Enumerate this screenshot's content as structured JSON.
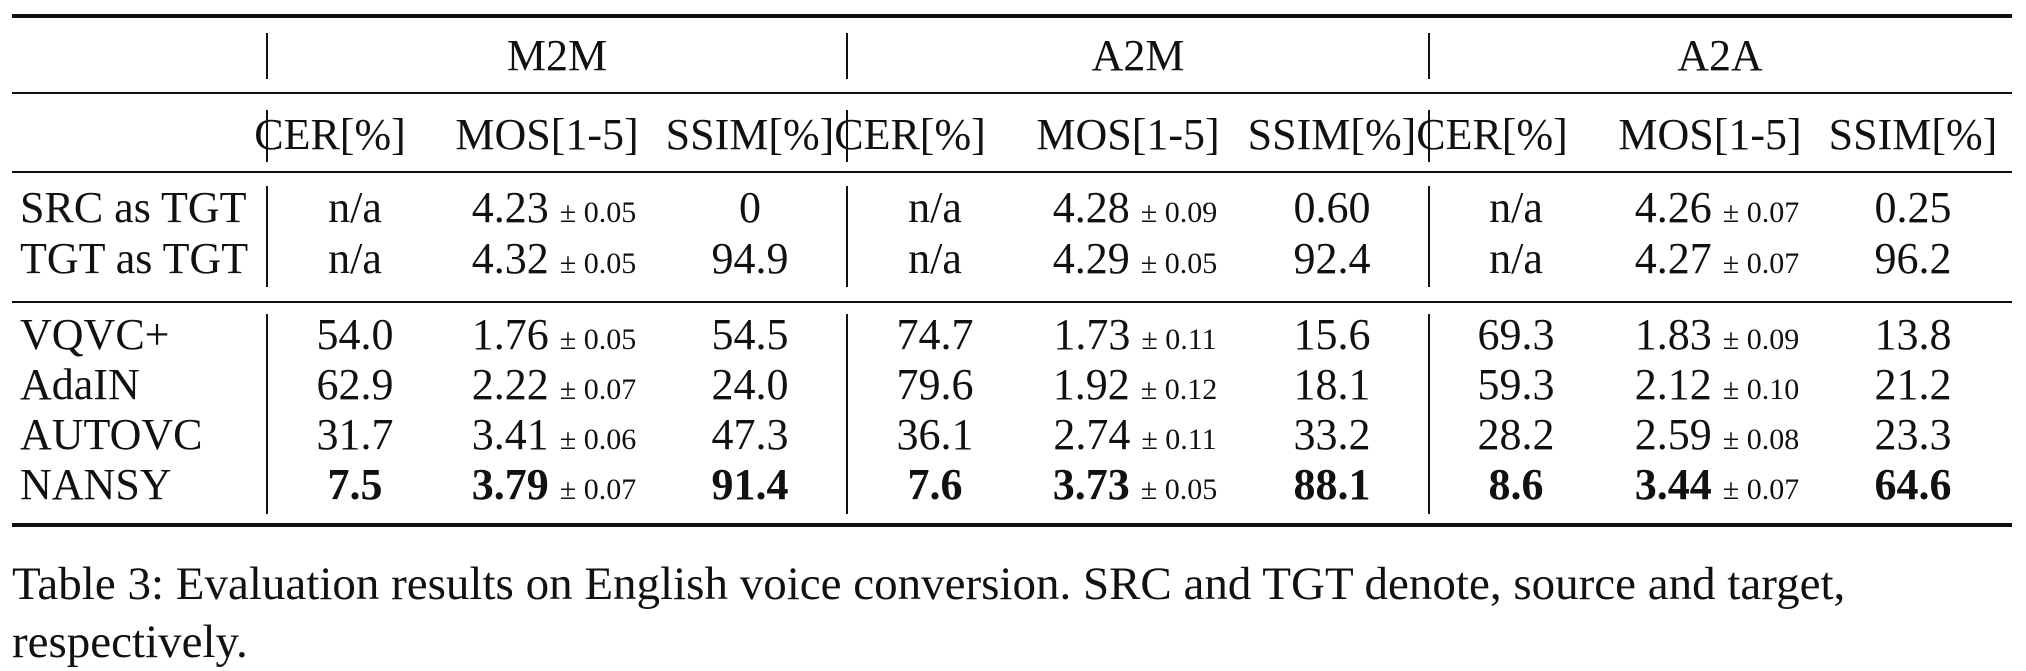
{
  "table": {
    "groups": [
      "M2M",
      "A2M",
      "A2A"
    ],
    "metrics": [
      "CER[%]",
      "MOS[1-5]",
      "SSIM[%]"
    ],
    "upper_rows": [
      {
        "label": "SRC as TGT",
        "cells": [
          {
            "cer": "n/a",
            "mos": "4.23",
            "mos_pm": "± 0.05",
            "ssim": "0"
          },
          {
            "cer": "n/a",
            "mos": "4.28",
            "mos_pm": "± 0.09",
            "ssim": "0.60"
          },
          {
            "cer": "n/a",
            "mos": "4.26",
            "mos_pm": "± 0.07",
            "ssim": "0.25"
          }
        ]
      },
      {
        "label": "TGT as TGT",
        "cells": [
          {
            "cer": "n/a",
            "mos": "4.32",
            "mos_pm": "± 0.05",
            "ssim": "94.9"
          },
          {
            "cer": "n/a",
            "mos": "4.29",
            "mos_pm": "± 0.05",
            "ssim": "92.4"
          },
          {
            "cer": "n/a",
            "mos": "4.27",
            "mos_pm": "± 0.07",
            "ssim": "96.2"
          }
        ]
      }
    ],
    "lower_rows": [
      {
        "label": "VQVC+",
        "bold": false,
        "cells": [
          {
            "cer": "54.0",
            "mos": "1.76",
            "mos_pm": "± 0.05",
            "ssim": "54.5"
          },
          {
            "cer": "74.7",
            "mos": "1.73",
            "mos_pm": "± 0.11",
            "ssim": "15.6"
          },
          {
            "cer": "69.3",
            "mos": "1.83",
            "mos_pm": "± 0.09",
            "ssim": "13.8"
          }
        ]
      },
      {
        "label": "AdaIN",
        "bold": false,
        "cells": [
          {
            "cer": "62.9",
            "mos": "2.22",
            "mos_pm": "± 0.07",
            "ssim": "24.0"
          },
          {
            "cer": "79.6",
            "mos": "1.92",
            "mos_pm": "± 0.12",
            "ssim": "18.1"
          },
          {
            "cer": "59.3",
            "mos": "2.12",
            "mos_pm": "± 0.10",
            "ssim": "21.2"
          }
        ]
      },
      {
        "label": "AUTOVC",
        "bold": false,
        "cells": [
          {
            "cer": "31.7",
            "mos": "3.41",
            "mos_pm": "± 0.06",
            "ssim": "47.3"
          },
          {
            "cer": "36.1",
            "mos": "2.74",
            "mos_pm": "± 0.11",
            "ssim": "33.2"
          },
          {
            "cer": "28.2",
            "mos": "2.59",
            "mos_pm": "± 0.08",
            "ssim": "23.3"
          }
        ]
      },
      {
        "label": "NANSY",
        "bold": true,
        "cells": [
          {
            "cer": "7.5",
            "mos": "3.79",
            "mos_pm": "± 0.07",
            "ssim": "91.4"
          },
          {
            "cer": "7.6",
            "mos": "3.73",
            "mos_pm": "± 0.05",
            "ssim": "88.1"
          },
          {
            "cer": "8.6",
            "mos": "3.44",
            "mos_pm": "± 0.07",
            "ssim": "64.6"
          }
        ]
      }
    ]
  },
  "caption": "Table 3: Evaluation results on English voice conversion. SRC and TGT denote, source and target, respectively."
}
